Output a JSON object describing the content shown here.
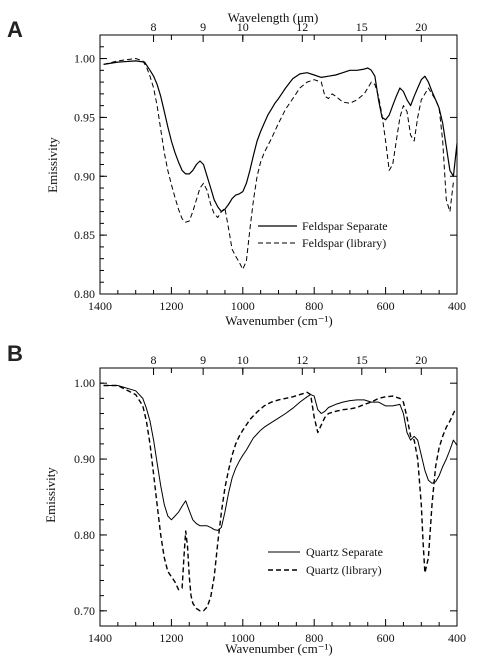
{
  "chart_data": [
    {
      "panel": "A",
      "type": "line",
      "xlabel": "Wavenumber (cm⁻¹)",
      "ylabel": "Emissivity",
      "top_axis_label": "Wavelength (μm)",
      "xlim": [
        1400,
        400
      ],
      "ylim": [
        0.8,
        1.02
      ],
      "x_ticks": [
        1400,
        1200,
        1000,
        800,
        600,
        400
      ],
      "y_ticks": [
        "0.80",
        "0.85",
        "0.90",
        "0.95",
        "1.00"
      ],
      "top_ticks": [
        "8",
        "9",
        "10",
        "12",
        "15",
        "20"
      ],
      "legend_position": "lower-right",
      "series": [
        {
          "name": "Feldspar Separate",
          "style": "solid",
          "x": [
            1390,
            1350,
            1300,
            1275,
            1260,
            1250,
            1240,
            1230,
            1220,
            1210,
            1200,
            1190,
            1180,
            1170,
            1160,
            1150,
            1140,
            1130,
            1120,
            1110,
            1100,
            1090,
            1080,
            1070,
            1060,
            1050,
            1040,
            1030,
            1020,
            1010,
            1000,
            990,
            980,
            970,
            960,
            950,
            940,
            930,
            920,
            910,
            900,
            880,
            860,
            840,
            820,
            800,
            780,
            760,
            740,
            720,
            700,
            680,
            660,
            650,
            640,
            630,
            620,
            610,
            600,
            590,
            580,
            570,
            560,
            550,
            540,
            530,
            520,
            510,
            500,
            490,
            480,
            470,
            460,
            450,
            440,
            430,
            420,
            410,
            400
          ],
          "y": [
            0.995,
            0.997,
            0.998,
            0.997,
            0.99,
            0.985,
            0.978,
            0.968,
            0.955,
            0.942,
            0.93,
            0.92,
            0.912,
            0.905,
            0.902,
            0.902,
            0.905,
            0.91,
            0.913,
            0.91,
            0.9,
            0.89,
            0.88,
            0.874,
            0.87,
            0.872,
            0.876,
            0.881,
            0.884,
            0.885,
            0.887,
            0.894,
            0.905,
            0.918,
            0.93,
            0.938,
            0.945,
            0.952,
            0.957,
            0.962,
            0.966,
            0.975,
            0.983,
            0.987,
            0.988,
            0.986,
            0.984,
            0.985,
            0.986,
            0.988,
            0.99,
            0.99,
            0.991,
            0.992,
            0.99,
            0.985,
            0.965,
            0.95,
            0.948,
            0.952,
            0.96,
            0.968,
            0.975,
            0.972,
            0.965,
            0.96,
            0.968,
            0.975,
            0.982,
            0.985,
            0.98,
            0.972,
            0.965,
            0.958,
            0.945,
            0.925,
            0.905,
            0.9,
            0.928
          ]
        },
        {
          "name": "Feldspar (library)",
          "style": "dashed",
          "x": [
            1390,
            1350,
            1300,
            1280,
            1270,
            1260,
            1250,
            1240,
            1230,
            1220,
            1210,
            1200,
            1190,
            1180,
            1170,
            1160,
            1150,
            1140,
            1130,
            1120,
            1110,
            1100,
            1090,
            1080,
            1070,
            1060,
            1050,
            1040,
            1030,
            1020,
            1010,
            1000,
            990,
            980,
            970,
            960,
            950,
            940,
            920,
            900,
            880,
            860,
            840,
            820,
            800,
            780,
            770,
            760,
            750,
            740,
            720,
            700,
            680,
            660,
            650,
            640,
            630,
            620,
            610,
            600,
            590,
            580,
            570,
            560,
            550,
            540,
            530,
            520,
            510,
            500,
            490,
            480,
            470,
            460,
            450,
            440,
            430,
            420,
            410
          ],
          "y": [
            0.995,
            0.998,
            1.0,
            0.998,
            0.993,
            0.985,
            0.975,
            0.96,
            0.94,
            0.92,
            0.905,
            0.893,
            0.882,
            0.872,
            0.864,
            0.861,
            0.862,
            0.87,
            0.88,
            0.89,
            0.894,
            0.888,
            0.876,
            0.868,
            0.865,
            0.87,
            0.873,
            0.856,
            0.838,
            0.832,
            0.827,
            0.821,
            0.828,
            0.855,
            0.88,
            0.9,
            0.912,
            0.92,
            0.932,
            0.945,
            0.957,
            0.966,
            0.975,
            0.98,
            0.982,
            0.98,
            0.968,
            0.966,
            0.97,
            0.968,
            0.963,
            0.962,
            0.965,
            0.97,
            0.975,
            0.98,
            0.978,
            0.968,
            0.952,
            0.93,
            0.905,
            0.91,
            0.93,
            0.95,
            0.96,
            0.955,
            0.935,
            0.93,
            0.95,
            0.965,
            0.97,
            0.975,
            0.97,
            0.965,
            0.958,
            0.93,
            0.88,
            0.87,
            0.895
          ]
        }
      ]
    },
    {
      "panel": "B",
      "type": "line",
      "xlabel": "Wavenumber (cm⁻¹)",
      "ylabel": "Emissivity",
      "xlim": [
        1400,
        400
      ],
      "ylim": [
        0.68,
        1.02
      ],
      "x_ticks": [
        1400,
        1200,
        1000,
        800,
        600,
        400
      ],
      "y_ticks": [
        "0.70",
        "0.80",
        "0.90",
        "1.00"
      ],
      "top_ticks": [
        "8",
        "9",
        "10",
        "12",
        "15",
        "20"
      ],
      "legend_position": "lower-right",
      "series": [
        {
          "name": "Quartz Separate",
          "style": "solid",
          "x": [
            1390,
            1350,
            1300,
            1280,
            1270,
            1260,
            1250,
            1240,
            1230,
            1220,
            1210,
            1200,
            1190,
            1180,
            1170,
            1160,
            1150,
            1140,
            1130,
            1120,
            1110,
            1100,
            1090,
            1080,
            1070,
            1060,
            1050,
            1040,
            1030,
            1020,
            1010,
            1000,
            990,
            980,
            970,
            960,
            950,
            940,
            920,
            900,
            880,
            860,
            840,
            820,
            810,
            800,
            790,
            780,
            770,
            760,
            740,
            720,
            700,
            680,
            660,
            640,
            620,
            600,
            580,
            560,
            550,
            540,
            530,
            520,
            510,
            500,
            490,
            480,
            470,
            460,
            450,
            440,
            430,
            420,
            410,
            400
          ],
          "y": [
            0.997,
            0.997,
            0.99,
            0.98,
            0.967,
            0.95,
            0.925,
            0.895,
            0.865,
            0.84,
            0.825,
            0.82,
            0.825,
            0.83,
            0.838,
            0.845,
            0.832,
            0.82,
            0.815,
            0.812,
            0.812,
            0.812,
            0.81,
            0.807,
            0.806,
            0.81,
            0.83,
            0.855,
            0.875,
            0.888,
            0.897,
            0.905,
            0.912,
            0.92,
            0.928,
            0.933,
            0.938,
            0.942,
            0.948,
            0.954,
            0.96,
            0.967,
            0.975,
            0.982,
            0.985,
            0.983,
            0.965,
            0.96,
            0.963,
            0.968,
            0.972,
            0.975,
            0.977,
            0.978,
            0.978,
            0.975,
            0.975,
            0.97,
            0.97,
            0.972,
            0.96,
            0.935,
            0.925,
            0.93,
            0.925,
            0.905,
            0.885,
            0.872,
            0.868,
            0.87,
            0.878,
            0.89,
            0.9,
            0.912,
            0.925,
            0.918
          ]
        },
        {
          "name": "Quartz (library)",
          "style": "dashed",
          "x": [
            1390,
            1350,
            1300,
            1280,
            1270,
            1260,
            1250,
            1240,
            1230,
            1220,
            1210,
            1200,
            1190,
            1180,
            1170,
            1165,
            1160,
            1155,
            1150,
            1145,
            1140,
            1130,
            1120,
            1110,
            1100,
            1090,
            1080,
            1070,
            1060,
            1050,
            1040,
            1030,
            1020,
            1010,
            1000,
            990,
            980,
            960,
            940,
            920,
            900,
            880,
            860,
            840,
            820,
            810,
            800,
            790,
            780,
            770,
            760,
            740,
            720,
            700,
            680,
            660,
            640,
            620,
            600,
            580,
            560,
            550,
            540,
            530,
            520,
            510,
            500,
            495,
            490,
            480,
            470,
            460,
            450,
            440,
            430,
            420,
            410,
            405
          ],
          "y": [
            0.997,
            0.997,
            0.985,
            0.97,
            0.95,
            0.92,
            0.88,
            0.84,
            0.8,
            0.77,
            0.752,
            0.745,
            0.738,
            0.728,
            0.73,
            0.77,
            0.805,
            0.785,
            0.745,
            0.72,
            0.71,
            0.703,
            0.7,
            0.7,
            0.705,
            0.718,
            0.745,
            0.79,
            0.83,
            0.862,
            0.885,
            0.905,
            0.92,
            0.93,
            0.938,
            0.945,
            0.952,
            0.962,
            0.97,
            0.975,
            0.978,
            0.98,
            0.982,
            0.985,
            0.988,
            0.985,
            0.955,
            0.935,
            0.945,
            0.955,
            0.96,
            0.963,
            0.965,
            0.966,
            0.968,
            0.972,
            0.975,
            0.98,
            0.982,
            0.983,
            0.98,
            0.975,
            0.955,
            0.93,
            0.925,
            0.9,
            0.84,
            0.79,
            0.75,
            0.77,
            0.84,
            0.89,
            0.915,
            0.93,
            0.942,
            0.95,
            0.96,
            0.965
          ]
        }
      ]
    }
  ]
}
